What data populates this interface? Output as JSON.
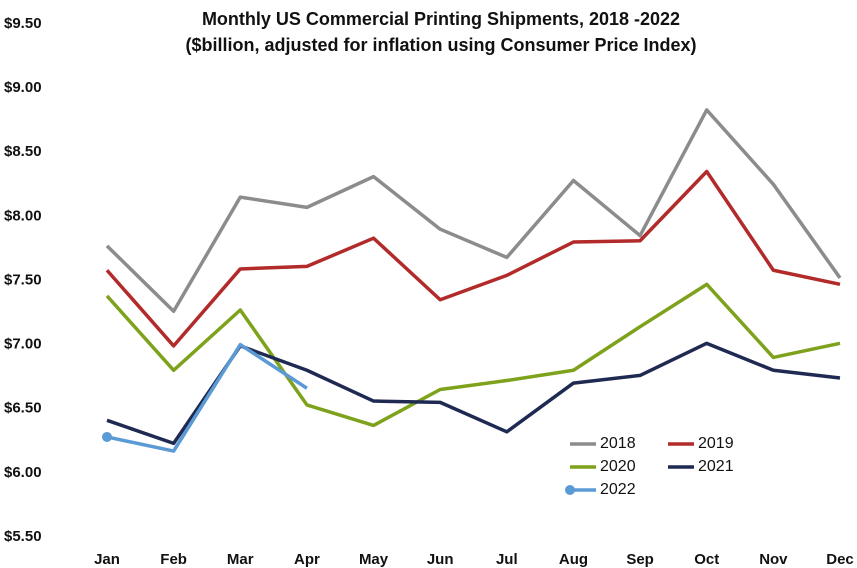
{
  "chart_data": {
    "type": "line",
    "title": "Monthly US Commercial Printing Shipments, 2018 -2022",
    "subtitle": "($billion, adjusted for inflation using Consumer Price Index)",
    "categories": [
      "Jan",
      "Feb",
      "Mar",
      "Apr",
      "May",
      "Jun",
      "Jul",
      "Aug",
      "Sep",
      "Oct",
      "Nov",
      "Dec"
    ],
    "series": [
      {
        "name": "2018",
        "color": "#8c8c8c",
        "values": [
          7.77,
          7.26,
          8.15,
          8.07,
          8.31,
          7.9,
          7.68,
          8.28,
          7.85,
          8.83,
          8.25,
          7.52
        ]
      },
      {
        "name": "2019",
        "color": "#b22a2a",
        "values": [
          7.58,
          6.99,
          7.59,
          7.61,
          7.83,
          7.35,
          7.54,
          7.8,
          7.81,
          8.35,
          7.58,
          7.47
        ]
      },
      {
        "name": "2020",
        "color": "#7ea21c",
        "values": [
          7.38,
          6.8,
          7.27,
          6.53,
          6.37,
          6.65,
          6.72,
          6.8,
          7.14,
          7.47,
          6.9,
          7.01
        ]
      },
      {
        "name": "2021",
        "color": "#1f2a52",
        "values": [
          6.41,
          6.23,
          6.99,
          6.8,
          6.56,
          6.55,
          6.32,
          6.7,
          6.76,
          7.01,
          6.8,
          6.74
        ]
      },
      {
        "name": "2022",
        "color": "#5b9bd5",
        "values": [
          6.28,
          6.17,
          7.0,
          6.66,
          null,
          null,
          null,
          null,
          null,
          null,
          null,
          null
        ]
      }
    ],
    "ylim": [
      5.5,
      9.5
    ],
    "yticks": [
      {
        "value": 5.5,
        "label": "$5.50"
      },
      {
        "value": 6,
        "label": "$6.00"
      },
      {
        "value": 6.5,
        "label": "$6.50"
      },
      {
        "value": 7,
        "label": "$7.00"
      },
      {
        "value": 7.5,
        "label": "$7.50"
      },
      {
        "value": 8,
        "label": "$8.00"
      },
      {
        "value": 8.5,
        "label": "$8.50"
      },
      {
        "value": 9,
        "label": "$9.00"
      },
      {
        "value": 9.5,
        "label": "$9.50"
      }
    ],
    "grid": false
  }
}
